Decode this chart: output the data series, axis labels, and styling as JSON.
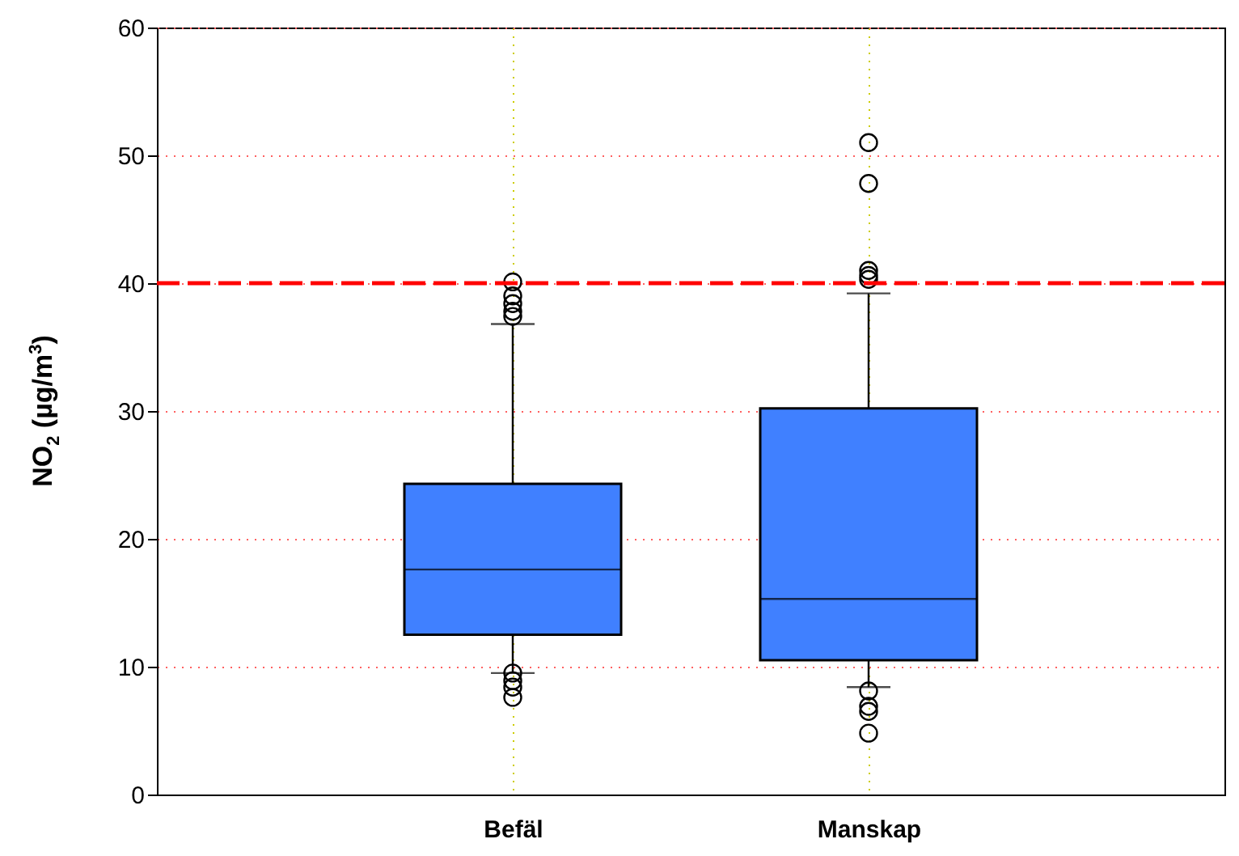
{
  "chart_data": {
    "type": "box",
    "ylabel": "NO$_{2}$ (µg/m$^{3}$)",
    "categories": [
      "Befäl",
      "Manskap"
    ],
    "series": [
      {
        "color": "#4080ff",
        "boxes": [
          {
            "low": 9.5,
            "q1": 12.5,
            "median": 17.6,
            "q3": 24.3,
            "high": 36.8,
            "outliers": [
              40.1,
              39.0,
              38.4,
              37.8,
              37.4,
              9.5,
              8.9,
              8.4,
              7.6
            ]
          },
          {
            "low": 8.4,
            "q1": 10.5,
            "median": 15.3,
            "q3": 30.2,
            "high": 39.2,
            "outliers": [
              51.0,
              47.8,
              41.0,
              40.6,
              40.3,
              8.1,
              6.9,
              6.5,
              4.8
            ]
          }
        ]
      }
    ],
    "ylim": [
      0,
      60
    ],
    "yticks": [
      0,
      10,
      20,
      30,
      40,
      50,
      60
    ],
    "grid": true,
    "ref_lines": [
      {
        "axis": "y",
        "value": 40,
        "label": null,
        "color": "#ff0000",
        "line_style": "dashed"
      }
    ]
  }
}
